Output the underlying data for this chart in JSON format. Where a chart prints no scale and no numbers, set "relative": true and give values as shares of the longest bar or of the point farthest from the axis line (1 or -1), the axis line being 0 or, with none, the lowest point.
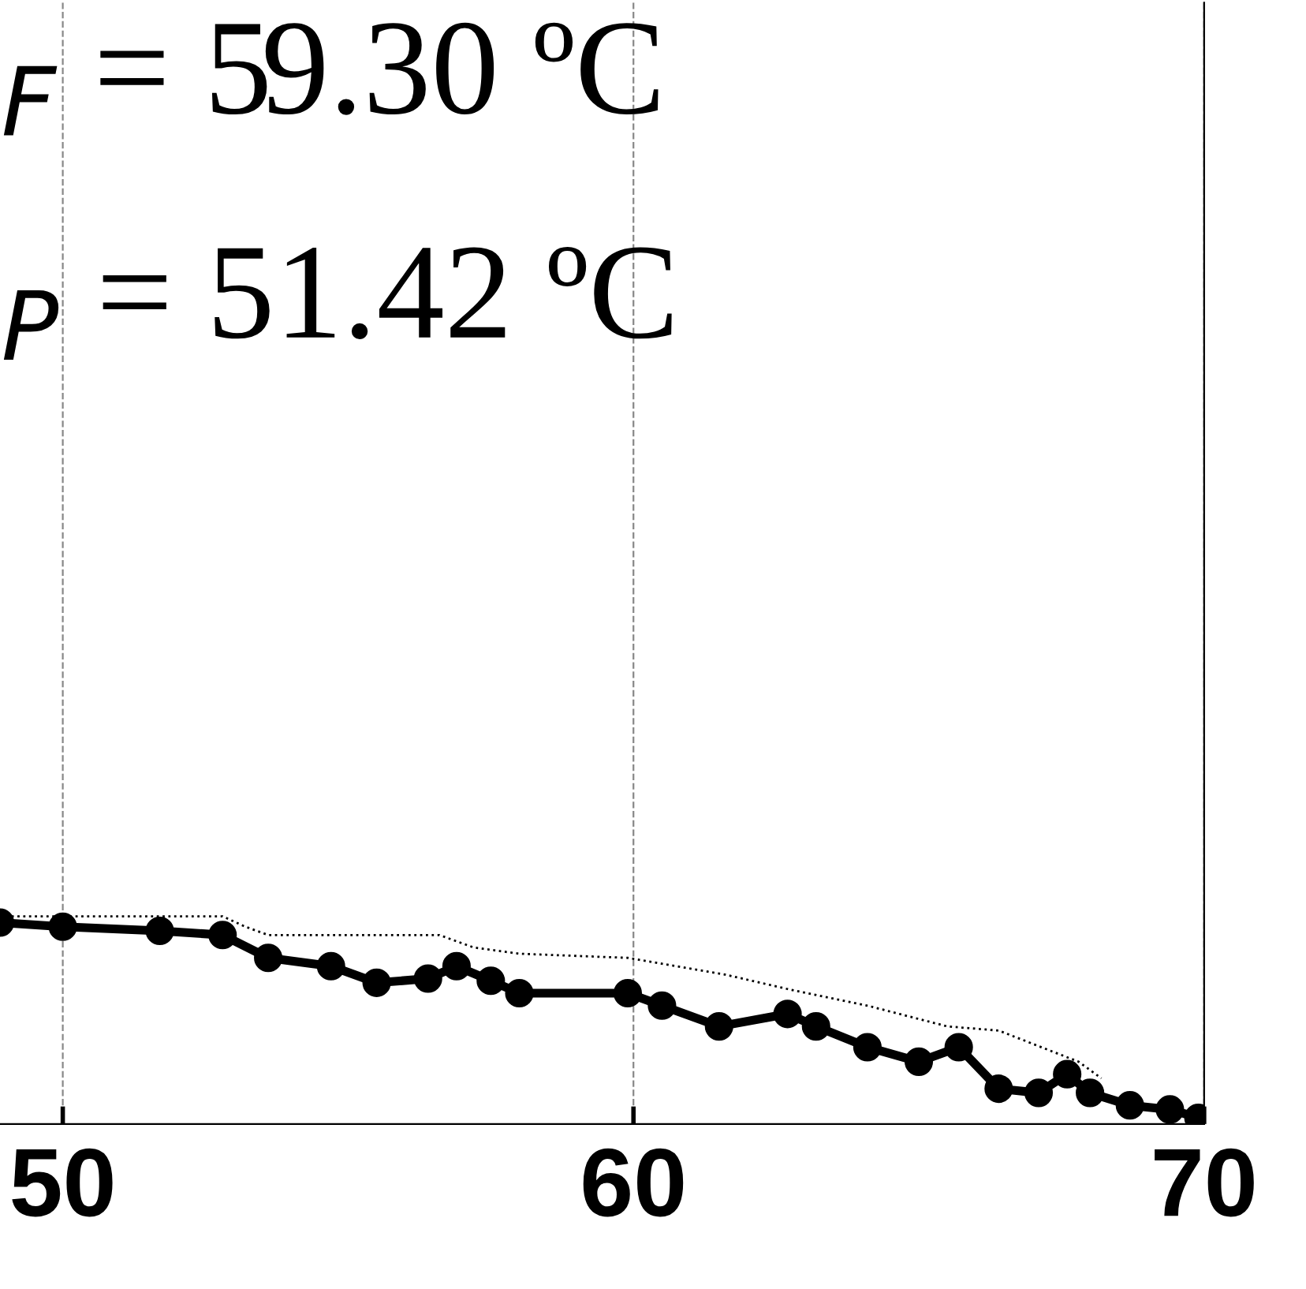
{
  "chart_data": {
    "type": "line",
    "relative": true,
    "xlim": [
      48.9,
      70
    ],
    "xticks": [
      50,
      60,
      70
    ],
    "grid": "x",
    "legend": false,
    "annotations": [
      "$_{F}$ = 59.30 ºC",
      "$_{P}$ = 51.42 ºC"
    ],
    "series": [
      {
        "color": "#000000",
        "marker": "circle",
        "line_style": "solid",
        "x": [
          48.9,
          50.0,
          51.7,
          52.8,
          53.6,
          54.7,
          55.5,
          56.4,
          56.9,
          57.5,
          58.0,
          59.9,
          60.5,
          61.5,
          62.7,
          63.2,
          64.1,
          65.0,
          65.7,
          66.4,
          67.1,
          67.6,
          68.0,
          68.7,
          69.4,
          69.9
        ],
        "values": [
          0.97,
          0.95,
          0.93,
          0.91,
          0.8,
          0.76,
          0.68,
          0.7,
          0.76,
          0.69,
          0.63,
          0.63,
          0.57,
          0.47,
          0.53,
          0.47,
          0.37,
          0.3,
          0.37,
          0.17,
          0.15,
          0.24,
          0.15,
          0.09,
          0.07,
          0.03
        ]
      },
      {
        "color": "#000000",
        "marker": "none",
        "line_style": "dotted",
        "x": [
          48.9,
          52.8,
          53.2,
          53.6,
          56.6,
          57.2,
          58.0,
          59.9,
          61.6,
          62.7,
          64.1,
          65.5,
          66.4,
          67.8,
          68.2
        ],
        "values": [
          1.0,
          1.0,
          0.95,
          0.91,
          0.91,
          0.85,
          0.82,
          0.8,
          0.72,
          0.65,
          0.57,
          0.47,
          0.45,
          0.3,
          0.22
        ]
      }
    ]
  }
}
